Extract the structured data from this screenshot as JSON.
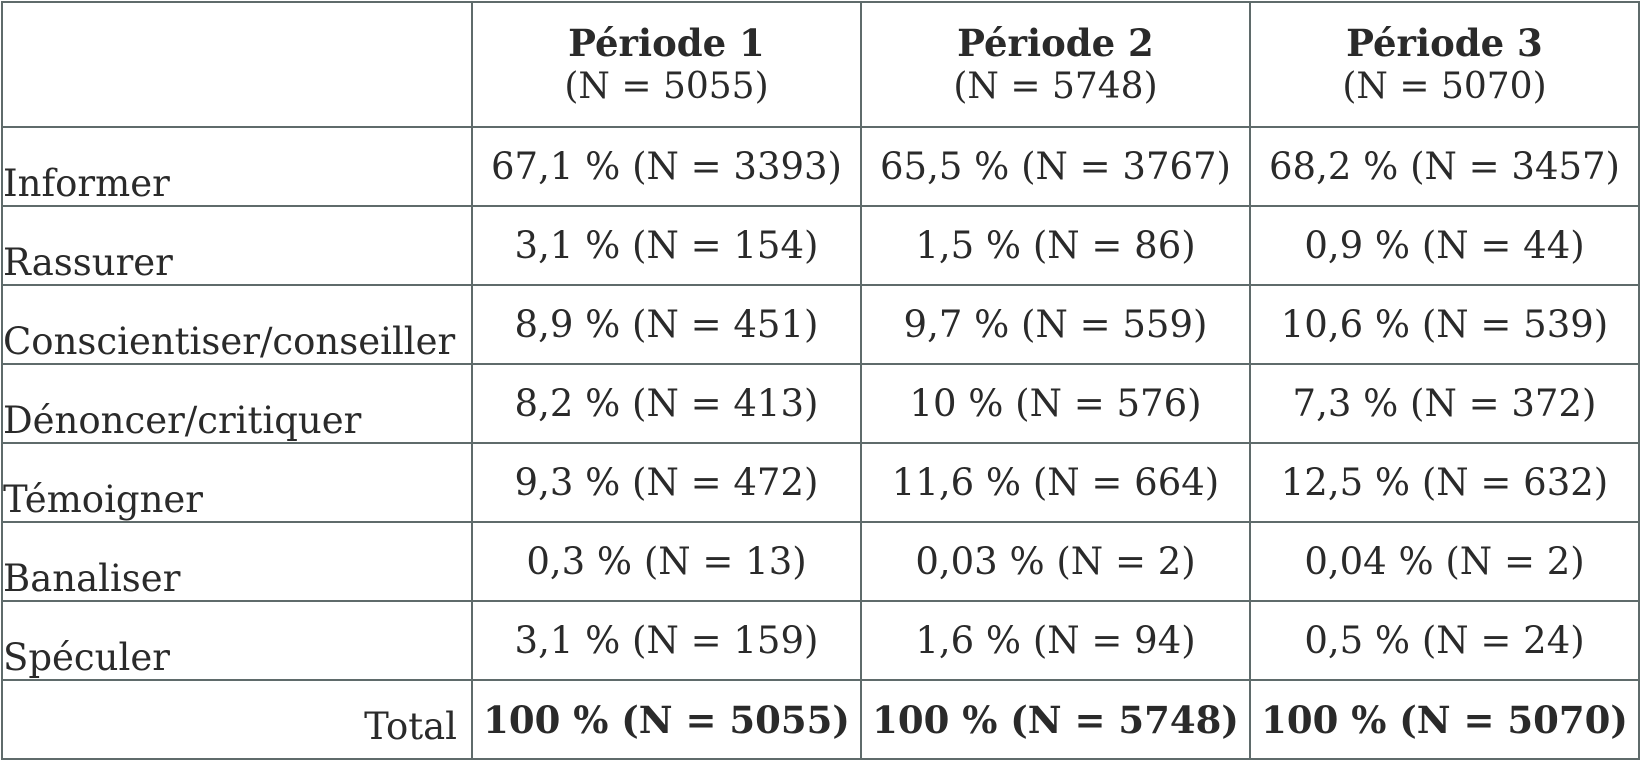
{
  "columns": [
    {
      "name": "Période 1",
      "n": "(N = 5055)"
    },
    {
      "name": "Période 2",
      "n": "(N = 5748)"
    },
    {
      "name": "Période 3",
      "n": "(N = 5070)"
    }
  ],
  "rows": [
    {
      "label": "Informer",
      "values": [
        "67,1 % (N = 3393)",
        "65,5 % (N = 3767)",
        "68,2 % (N = 3457)"
      ]
    },
    {
      "label": "Rassurer",
      "values": [
        "3,1 % (N = 154)",
        "1,5 % (N = 86)",
        "0,9 % (N = 44)"
      ]
    },
    {
      "label": "Conscientiser/conseiller",
      "values": [
        "8,9 % (N = 451)",
        "9,7 % (N = 559)",
        "10,6 % (N = 539)"
      ]
    },
    {
      "label": "Dénoncer/critiquer",
      "values": [
        "8,2 % (N = 413)",
        "10 % (N = 576)",
        "7,3 % (N = 372)"
      ]
    },
    {
      "label": "Témoigner",
      "values": [
        "9,3 % (N = 472)",
        "11,6 % (N = 664)",
        "12,5 % (N = 632)"
      ]
    },
    {
      "label": "Banaliser",
      "values": [
        "0,3 % (N = 13)",
        "0,03 % (N = 2)",
        "0,04 % (N = 2)"
      ]
    },
    {
      "label": "Spéculer",
      "values": [
        "3,1 % (N = 159)",
        "1,6 % (N = 94)",
        "0,5 % (N = 24)"
      ]
    }
  ],
  "total": {
    "label": "Total",
    "values": [
      "100 % (N = 5055)",
      "100 % (N = 5748)",
      "100 % (N = 5070)"
    ]
  }
}
